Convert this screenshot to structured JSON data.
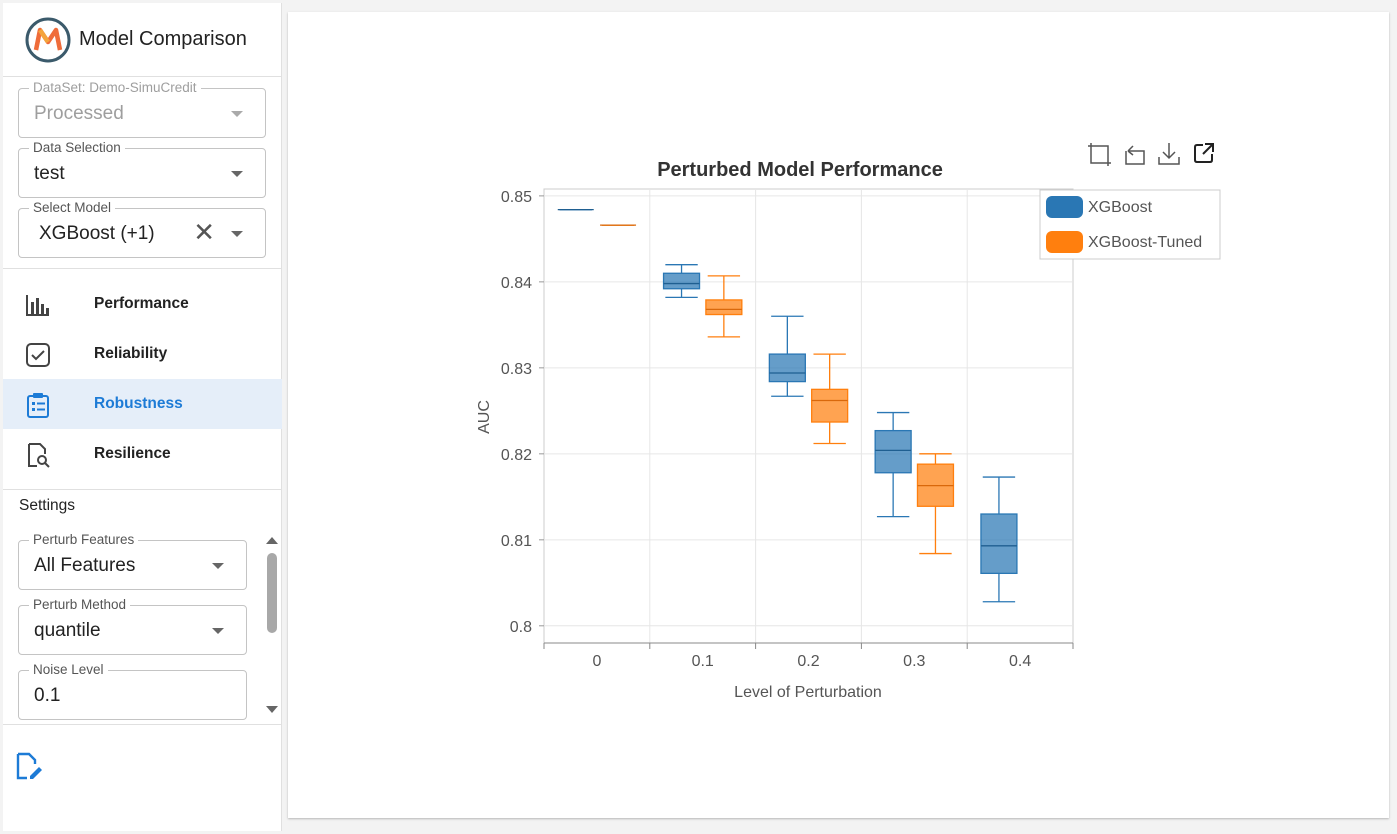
{
  "app": {
    "title": "Model Comparison",
    "logo_icon": "m-logo-icon"
  },
  "sidebar": {
    "dataset": {
      "legend": "DataSet: Demo-SimuCredit",
      "value": "Processed"
    },
    "data_selection": {
      "legend": "Data Selection",
      "value": "test"
    },
    "select_model": {
      "legend": "Select Model",
      "value": "XGBoost (+1)",
      "clear": "✕"
    },
    "nav": [
      {
        "label": "Performance",
        "icon": "bar-chart-icon"
      },
      {
        "label": "Reliability",
        "icon": "check-badge-icon"
      },
      {
        "label": "Robustness",
        "icon": "clipboard-list-icon"
      },
      {
        "label": "Resilience",
        "icon": "doc-search-icon"
      }
    ],
    "active_nav": "Robustness",
    "settings": {
      "title": "Settings",
      "perturb_features": {
        "legend": "Perturb Features",
        "value": "All Features"
      },
      "perturb_method": {
        "legend": "Perturb Method",
        "value": "quantile"
      },
      "noise_level": {
        "legend": "Noise Level",
        "value": "0.1"
      }
    },
    "report_icon": "edit-report-icon"
  },
  "toolbar_icons": [
    "zoom-select-icon",
    "zoom-reset-icon",
    "download-icon",
    "open-external-icon"
  ],
  "colors": {
    "accent": "#1d7bd6",
    "xgboost": "#2a77b4",
    "xgboost_tuned": "#ff7f0e"
  },
  "chart_data": {
    "type": "box",
    "title": "Perturbed Model Performance",
    "xlabel": "Level of Perturbation",
    "ylabel": "AUC",
    "categories": [
      "0",
      "0.1",
      "0.2",
      "0.3",
      "0.4"
    ],
    "ylim": [
      0.798,
      0.8508
    ],
    "yticks": [
      "0.8",
      "0.81",
      "0.82",
      "0.83",
      "0.84",
      "0.85"
    ],
    "grid": true,
    "legend_position": "top-right",
    "series": [
      {
        "name": "XGBoost",
        "color": "#2a77b4",
        "boxes": [
          {
            "min": 0.8484,
            "q1": 0.8484,
            "median": 0.8484,
            "q3": 0.8484,
            "max": 0.8484
          },
          {
            "min": 0.8382,
            "q1": 0.8392,
            "median": 0.8398,
            "q3": 0.841,
            "max": 0.842
          },
          {
            "min": 0.8267,
            "q1": 0.8284,
            "median": 0.8294,
            "q3": 0.8316,
            "max": 0.836
          },
          {
            "min": 0.8127,
            "q1": 0.8178,
            "median": 0.8204,
            "q3": 0.8227,
            "max": 0.8248
          },
          {
            "min": 0.8028,
            "q1": 0.8061,
            "median": 0.8093,
            "q3": 0.813,
            "max": 0.8173
          }
        ]
      },
      {
        "name": "XGBoost-Tuned",
        "color": "#ff7f0e",
        "boxes": [
          {
            "min": 0.8466,
            "q1": 0.8466,
            "median": 0.8466,
            "q3": 0.8466,
            "max": 0.8466
          },
          {
            "min": 0.8336,
            "q1": 0.8362,
            "median": 0.8368,
            "q3": 0.8379,
            "max": 0.8407
          },
          {
            "min": 0.8212,
            "q1": 0.8237,
            "median": 0.8262,
            "q3": 0.8275,
            "max": 0.8316
          },
          {
            "min": 0.8084,
            "q1": 0.8139,
            "median": 0.8163,
            "q3": 0.8188,
            "max": 0.82
          },
          {
            "min": null,
            "q1": null,
            "median": null,
            "q3": null,
            "max": null
          }
        ]
      }
    ]
  }
}
